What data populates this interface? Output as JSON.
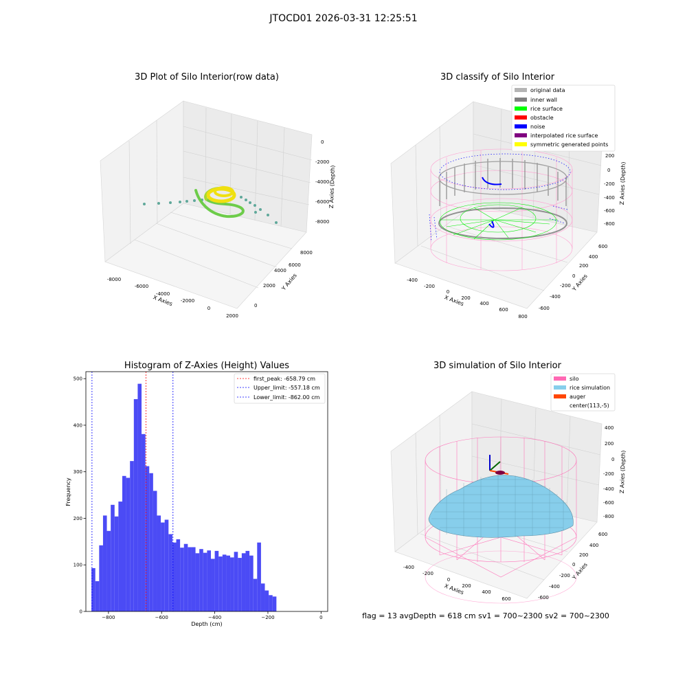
{
  "suptitle": "JTOCD01 2026-03-31 12:25:51",
  "footer": "flag = 13  avgDepth = 618 cm  sv1 = 700~2300  sv2 = 700~2300",
  "plots": {
    "raw": {
      "title": "3D Plot of Silo Interior(row data)",
      "xlabel": "X Axies",
      "ylabel": "Y Axies",
      "zlabel": "Z Axies (Depth)",
      "xticks": [
        "-8000",
        "-6000",
        "-4000",
        "-2000",
        "0",
        "2000"
      ],
      "yticks": [
        "0",
        "2000",
        "4000",
        "6000",
        "8000"
      ],
      "zticks": [
        "0",
        "-2000",
        "-4000",
        "-6000",
        "-8000"
      ],
      "colors": {
        "scatter": "#5fa89a",
        "spiral": "#6dcc4a",
        "top": "#f0e010",
        "mid": "#a8d830"
      }
    },
    "classify": {
      "title": "3D classify of Silo Interior",
      "xlabel": "X Axies",
      "ylabel": "Y Axies",
      "zlabel": "Z Axies (Depth)",
      "xticks": [
        "-400",
        "-200",
        "0",
        "200",
        "400",
        "600",
        "800"
      ],
      "yticks": [
        "-600",
        "-400",
        "-200",
        "0",
        "200",
        "400",
        "600"
      ],
      "zticks": [
        "200",
        "0",
        "-200",
        "-400",
        "-600",
        "-800"
      ],
      "legend": [
        {
          "label": "original data",
          "color": "#b4b4b4"
        },
        {
          "label": "inner wall",
          "color": "#808080"
        },
        {
          "label": "rice surface",
          "color": "#00ff00"
        },
        {
          "label": "obstacle",
          "color": "#ff0000"
        },
        {
          "label": "noise",
          "color": "#0000ff"
        },
        {
          "label": "interpolated rice surface",
          "color": "#800080"
        },
        {
          "label": "symmetric generated points",
          "color": "#ffff00"
        }
      ]
    },
    "simulation": {
      "title": "3D simulation of Silo Interior",
      "xlabel": "X Axies",
      "ylabel": "Y Axies",
      "zlabel": "Z Axies (Depth)",
      "xticks": [
        "-400",
        "-200",
        "0",
        "200",
        "400",
        "600"
      ],
      "yticks": [
        "-600",
        "-400",
        "-200",
        "0",
        "200",
        "400",
        "600"
      ],
      "zticks": [
        "400",
        "200",
        "0",
        "-200",
        "-400",
        "-600",
        "-800"
      ],
      "legend": [
        {
          "label": "silo",
          "color": "#ff69b4"
        },
        {
          "label": "rice simulation",
          "color": "#87ceeb"
        },
        {
          "label": "auger",
          "color": "#ff4500"
        },
        {
          "label": "center(113,-5)",
          "color": ""
        }
      ]
    }
  },
  "chart_data": {
    "type": "bar",
    "title": "Histogram of Z-Axies (Height) Values",
    "xlabel": "Depth (cm)",
    "ylabel": "Frequency",
    "xlim": [
      -885,
      25
    ],
    "ylim": [
      0,
      515
    ],
    "xticks": [
      -800,
      -600,
      -400,
      -200,
      0
    ],
    "yticks": [
      0,
      100,
      200,
      300,
      400,
      500
    ],
    "bin_edges_start": -864,
    "bin_width": 14.5,
    "bar_color": "#4b4bf5",
    "values": [
      93,
      65,
      142,
      206,
      173,
      229,
      204,
      236,
      291,
      287,
      323,
      456,
      489,
      381,
      312,
      297,
      259,
      206,
      191,
      197,
      166,
      148,
      155,
      137,
      145,
      138,
      138,
      125,
      134,
      126,
      131,
      113,
      130,
      118,
      122,
      120,
      116,
      128,
      115,
      125,
      130,
      120,
      70,
      148,
      60,
      45,
      35,
      32
    ],
    "vlines": [
      {
        "label": "first_peak: -658.79 cm",
        "x": -658.79,
        "color": "#ff0000"
      },
      {
        "label": "Upper_limit: -557.18 cm",
        "x": -557.18,
        "color": "#0000ff"
      },
      {
        "label": "Lower_limit: -862.00 cm",
        "x": -862.0,
        "color": "#0000ff"
      }
    ],
    "legend_position": "top-right"
  }
}
